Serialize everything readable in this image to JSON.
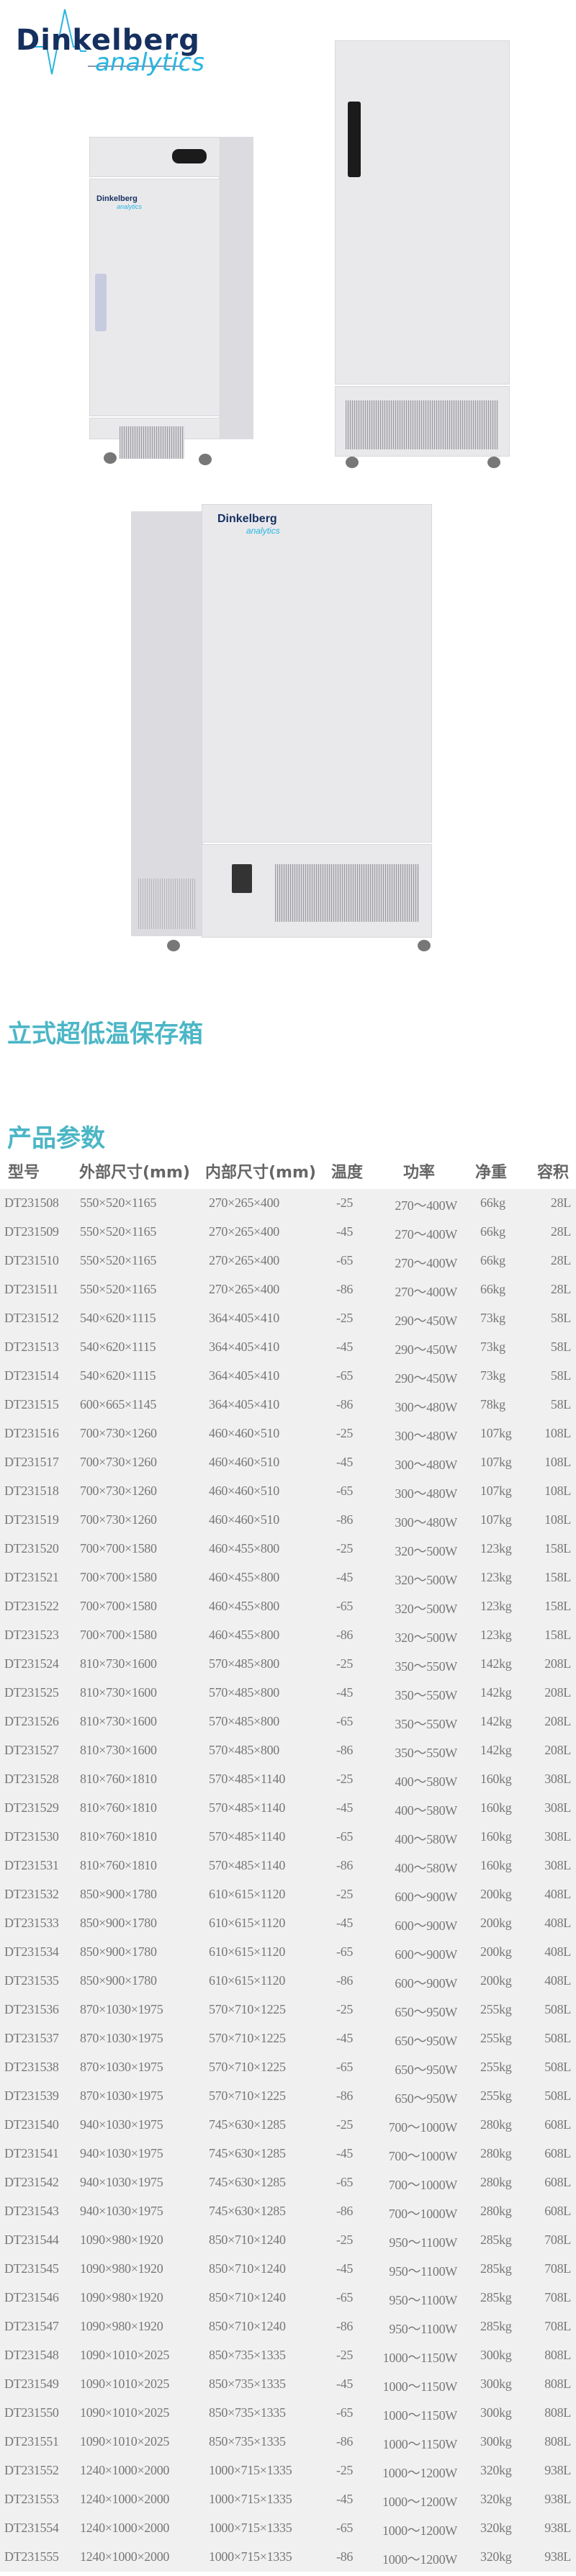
{
  "brand": {
    "name": "Dinkelberg",
    "sub": "analytics",
    "colors": {
      "primary": "#15305f",
      "accent": "#29b5e0"
    }
  },
  "product_title": "立式超低温保存箱",
  "section_title": "产品参数",
  "accent_color": "#4bb6c6",
  "table": {
    "headers": [
      "型号",
      "外部尺寸(mm)",
      "内部尺寸(mm)",
      "温度",
      "功率",
      "净重",
      "容积"
    ],
    "rows": [
      [
        "DT231508",
        "550×520×1165",
        "270×265×400",
        "-25",
        "270～400W",
        "66kg",
        "28L"
      ],
      [
        "DT231509",
        "550×520×1165",
        "270×265×400",
        "-45",
        "270～400W",
        "66kg",
        "28L"
      ],
      [
        "DT231510",
        "550×520×1165",
        "270×265×400",
        "-65",
        "270～400W",
        "66kg",
        "28L"
      ],
      [
        "DT231511",
        "550×520×1165",
        "270×265×400",
        "-86",
        "270～400W",
        "66kg",
        "28L"
      ],
      [
        "DT231512",
        "540×620×1115",
        "364×405×410",
        "-25",
        "290～450W",
        "73kg",
        "58L"
      ],
      [
        "DT231513",
        "540×620×1115",
        "364×405×410",
        "-45",
        "290～450W",
        "73kg",
        "58L"
      ],
      [
        "DT231514",
        "540×620×1115",
        "364×405×410",
        "-65",
        "290～450W",
        "73kg",
        "58L"
      ],
      [
        "DT231515",
        "600×665×1145",
        "364×405×410",
        "-86",
        "300～480W",
        "78kg",
        "58L"
      ],
      [
        "DT231516",
        "700×730×1260",
        "460×460×510",
        "-25",
        "300～480W",
        "107kg",
        "108L"
      ],
      [
        "DT231517",
        "700×730×1260",
        "460×460×510",
        "-45",
        "300～480W",
        "107kg",
        "108L"
      ],
      [
        "DT231518",
        "700×730×1260",
        "460×460×510",
        "-65",
        "300～480W",
        "107kg",
        "108L"
      ],
      [
        "DT231519",
        "700×730×1260",
        "460×460×510",
        "-86",
        "300～480W",
        "107kg",
        "108L"
      ],
      [
        "DT231520",
        "700×700×1580",
        "460×455×800",
        "-25",
        "320～500W",
        "123kg",
        "158L"
      ],
      [
        "DT231521",
        "700×700×1580",
        "460×455×800",
        "-45",
        "320～500W",
        "123kg",
        "158L"
      ],
      [
        "DT231522",
        "700×700×1580",
        "460×455×800",
        "-65",
        "320～500W",
        "123kg",
        "158L"
      ],
      [
        "DT231523",
        "700×700×1580",
        "460×455×800",
        "-86",
        "320～500W",
        "123kg",
        "158L"
      ],
      [
        "DT231524",
        "810×730×1600",
        "570×485×800",
        "-25",
        "350～550W",
        "142kg",
        "208L"
      ],
      [
        "DT231525",
        "810×730×1600",
        "570×485×800",
        "-45",
        "350～550W",
        "142kg",
        "208L"
      ],
      [
        "DT231526",
        "810×730×1600",
        "570×485×800",
        "-65",
        "350～550W",
        "142kg",
        "208L"
      ],
      [
        "DT231527",
        "810×730×1600",
        "570×485×800",
        "-86",
        "350～550W",
        "142kg",
        "208L"
      ],
      [
        "DT231528",
        "810×760×1810",
        "570×485×1140",
        "-25",
        "400～580W",
        "160kg",
        "308L"
      ],
      [
        "DT231529",
        "810×760×1810",
        "570×485×1140",
        "-45",
        "400～580W",
        "160kg",
        "308L"
      ],
      [
        "DT231530",
        "810×760×1810",
        "570×485×1140",
        "-65",
        "400～580W",
        "160kg",
        "308L"
      ],
      [
        "DT231531",
        "810×760×1810",
        "570×485×1140",
        "-86",
        "400～580W",
        "160kg",
        "308L"
      ],
      [
        "DT231532",
        "850×900×1780",
        "610×615×1120",
        "-25",
        "600～900W",
        "200kg",
        "408L"
      ],
      [
        "DT231533",
        "850×900×1780",
        "610×615×1120",
        "-45",
        "600～900W",
        "200kg",
        "408L"
      ],
      [
        "DT231534",
        "850×900×1780",
        "610×615×1120",
        "-65",
        "600～900W",
        "200kg",
        "408L"
      ],
      [
        "DT231535",
        "850×900×1780",
        "610×615×1120",
        "-86",
        "600～900W",
        "200kg",
        "408L"
      ],
      [
        "DT231536",
        "870×1030×1975",
        "570×710×1225",
        "-25",
        "650～950W",
        "255kg",
        "508L"
      ],
      [
        "DT231537",
        "870×1030×1975",
        "570×710×1225",
        "-45",
        "650～950W",
        "255kg",
        "508L"
      ],
      [
        "DT231538",
        "870×1030×1975",
        "570×710×1225",
        "-65",
        "650～950W",
        "255kg",
        "508L"
      ],
      [
        "DT231539",
        "870×1030×1975",
        "570×710×1225",
        "-86",
        "650～950W",
        "255kg",
        "508L"
      ],
      [
        "DT231540",
        "940×1030×1975",
        "745×630×1285",
        "-25",
        "700～1000W",
        "280kg",
        "608L"
      ],
      [
        "DT231541",
        "940×1030×1975",
        "745×630×1285",
        "-45",
        "700～1000W",
        "280kg",
        "608L"
      ],
      [
        "DT231542",
        "940×1030×1975",
        "745×630×1285",
        "-65",
        "700～1000W",
        "280kg",
        "608L"
      ],
      [
        "DT231543",
        "940×1030×1975",
        "745×630×1285",
        "-86",
        "700～1000W",
        "280kg",
        "608L"
      ],
      [
        "DT231544",
        "1090×980×1920",
        "850×710×1240",
        "-25",
        "950～1100W",
        "285kg",
        "708L"
      ],
      [
        "DT231545",
        "1090×980×1920",
        "850×710×1240",
        "-45",
        "950～1100W",
        "285kg",
        "708L"
      ],
      [
        "DT231546",
        "1090×980×1920",
        "850×710×1240",
        "-65",
        "950～1100W",
        "285kg",
        "708L"
      ],
      [
        "DT231547",
        "1090×980×1920",
        "850×710×1240",
        "-86",
        "950～1100W",
        "285kg",
        "708L"
      ],
      [
        "DT231548",
        "1090×1010×2025",
        "850×735×1335",
        "-25",
        "1000～1150W",
        "300kg",
        "808L"
      ],
      [
        "DT231549",
        "1090×1010×2025",
        "850×735×1335",
        "-45",
        "1000～1150W",
        "300kg",
        "808L"
      ],
      [
        "DT231550",
        "1090×1010×2025",
        "850×735×1335",
        "-65",
        "1000～1150W",
        "300kg",
        "808L"
      ],
      [
        "DT231551",
        "1090×1010×2025",
        "850×735×1335",
        "-86",
        "1000～1150W",
        "300kg",
        "808L"
      ],
      [
        "DT231552",
        "1240×1000×2000",
        "1000×715×1335",
        "-25",
        "1000～1200W",
        "320kg",
        "938L"
      ],
      [
        "DT231553",
        "1240×1000×2000",
        "1000×715×1335",
        "-45",
        "1000～1200W",
        "320kg",
        "938L"
      ],
      [
        "DT231554",
        "1240×1000×2000",
        "1000×715×1335",
        "-65",
        "1000～1200W",
        "320kg",
        "938L"
      ],
      [
        "DT231555",
        "1240×1000×2000",
        "1000×715×1335",
        "-86",
        "1000～1200W",
        "320kg",
        "938L"
      ]
    ]
  }
}
